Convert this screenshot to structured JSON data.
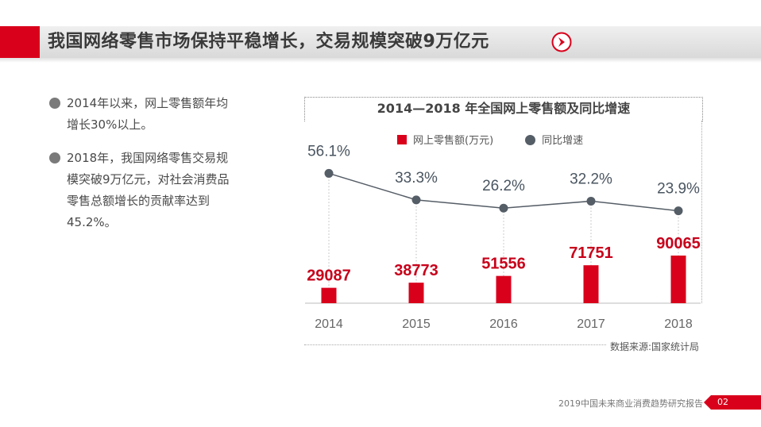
{
  "header": {
    "title": "我国网络零售市场保持平稳增长，交易规模突破9万亿元"
  },
  "bullets": [
    "2014年以来，网上零售额年均增长30%以上。",
    "2018年，我国网络零售交易规模突破9万亿元，对社会消费品零售总额增长的贡献率达到45.2%。"
  ],
  "chart_data": {
    "type": "bar+line",
    "title": "2014—2018 年全国网上零售额及同比增速",
    "categories": [
      "2014",
      "2015",
      "2016",
      "2017",
      "2018"
    ],
    "series": [
      {
        "name": "网上零售额(万元)",
        "type": "bar",
        "values": [
          29087,
          38773,
          51556,
          71751,
          90065
        ],
        "labels": [
          "29087",
          "38773",
          "51556",
          "71751",
          "90065"
        ]
      },
      {
        "name": "同比增速",
        "type": "line",
        "values": [
          56.1,
          33.3,
          26.2,
          32.2,
          23.9
        ],
        "labels": [
          "56.1%",
          "33.3%",
          "26.2%",
          "32.2%",
          "23.9%"
        ]
      }
    ],
    "legend_position": "top",
    "colors": {
      "bar": "#d9001b",
      "line": "#555d66",
      "bar_label": "#c8001a"
    }
  },
  "source": "数据来源:国家统计局",
  "footer": {
    "report_name": "2019中国未来商业消费趋势研究报告",
    "page": "02"
  },
  "icons": {
    "header": "chevron-right-circle-icon"
  }
}
